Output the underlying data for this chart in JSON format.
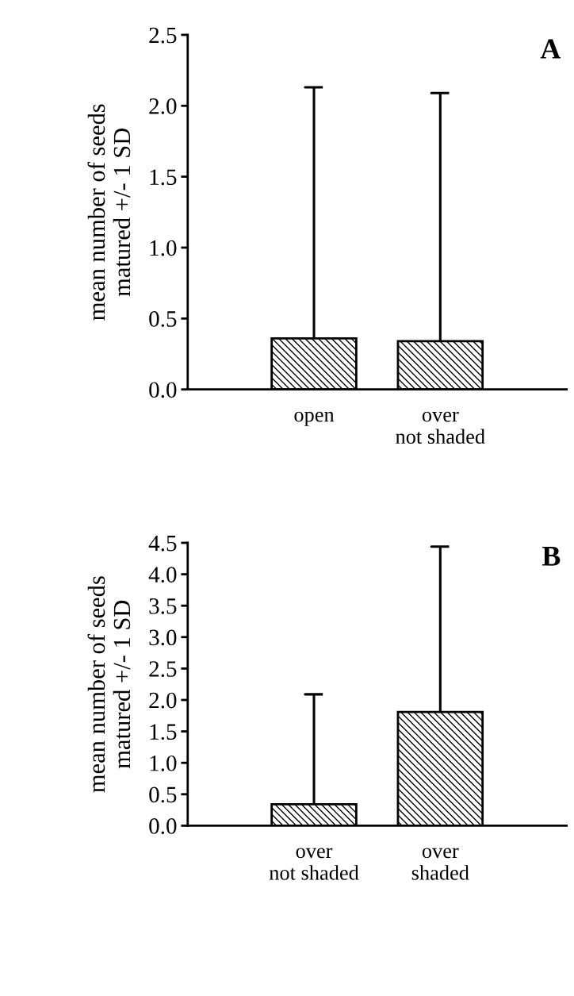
{
  "chart_data": [
    {
      "type": "bar",
      "categories": [
        "open",
        "over\nnot shaded"
      ],
      "values": [
        0.36,
        0.34
      ],
      "errors": [
        [
          0.36,
          2.13
        ],
        [
          0.34,
          2.09
        ]
      ],
      "color": "#000000",
      "ylabel": "mean number of seeds\nmatured +/- 1 SD",
      "ylim": [
        0,
        2.5
      ],
      "yticks": [
        {
          "value": 0,
          "label": "0.0"
        },
        {
          "value": 0.5,
          "label": "0.5"
        },
        {
          "value": 1,
          "label": "1.0"
        },
        {
          "value": 1.5,
          "label": "1.5"
        },
        {
          "value": 2,
          "label": "2.0"
        },
        {
          "value": 2.5,
          "label": "2.5"
        }
      ],
      "annotations": [
        "A"
      ],
      "grid": false
    },
    {
      "type": "bar",
      "categories": [
        "over\nnot shaded",
        "over\nshaded"
      ],
      "values": [
        0.34,
        1.81
      ],
      "errors": [
        [
          0.34,
          2.09
        ],
        [
          1.81,
          4.44
        ]
      ],
      "color": "#000000",
      "ylabel": "mean number of seeds\nmatured +/- 1 SD",
      "ylim": [
        0,
        4.5
      ],
      "yticks": [
        {
          "value": 0,
          "label": "0.0"
        },
        {
          "value": 0.5,
          "label": "0.5"
        },
        {
          "value": 1,
          "label": "1.0"
        },
        {
          "value": 1.5,
          "label": "1.5"
        },
        {
          "value": 2,
          "label": "2.0"
        },
        {
          "value": 2.5,
          "label": "2.5"
        },
        {
          "value": 3,
          "label": "3.0"
        },
        {
          "value": 3.5,
          "label": "3.5"
        },
        {
          "value": 4,
          "label": "4.0"
        },
        {
          "value": 4.5,
          "label": "4.5"
        }
      ],
      "annotations": [
        "B"
      ],
      "grid": false
    }
  ]
}
